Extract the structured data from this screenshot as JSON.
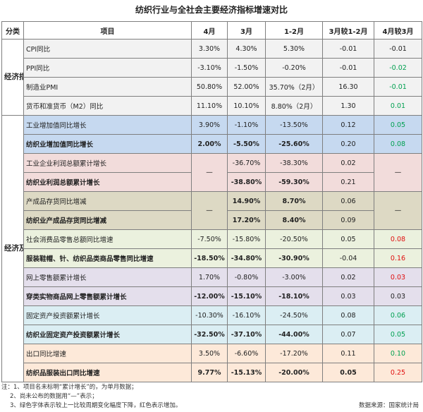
{
  "title": "纺织行业与全社会主要经济指标增速对比",
  "headers": [
    "分类",
    "项目",
    "4月",
    "3月",
    "1-2月",
    "3月较1-2月",
    "4月较3月"
  ],
  "categories": {
    "econ": "经济指标",
    "industry": "经济及纺织行业指标"
  },
  "rows": {
    "cpi": {
      "name": "CPI同比",
      "apr": "3.30%",
      "mar": "4.30%",
      "janfeb": "5.30%",
      "d1": "-0.01",
      "d2": "-0.01"
    },
    "ppi": {
      "name": "PPI同比",
      "apr": "-3.10%",
      "mar": "-1.50%",
      "janfeb": "-0.20%",
      "d1": "-0.01",
      "d2": "-0.02"
    },
    "pmi": {
      "name": "制造业PMI",
      "apr": "50.80%",
      "mar": "52.00%",
      "janfeb": "35.70%（2月）",
      "d1": "16.30",
      "d2": "-0.01"
    },
    "m2": {
      "name": "货币和准货币（M2）同比",
      "apr": "11.10%",
      "mar": "10.10%",
      "janfeb": "8.80%（2月）",
      "d1": "1.30",
      "d2": "0.01"
    },
    "ind_add": {
      "name": "工业增加值同比增长",
      "apr": "3.90%",
      "mar": "-1.10%",
      "janfeb": "-13.50%",
      "d1": "0.12",
      "d2": "0.05"
    },
    "tex_add": {
      "name": "纺织业增加值同比增长",
      "apr": "2.00%",
      "mar": "-5.50%",
      "janfeb": "-25.60%",
      "d1": "0.20",
      "d2": "0.08"
    },
    "ind_profit": {
      "name": "工业企业利润总额累计增长",
      "mar": "-36.70%",
      "janfeb": "-38.30%",
      "d1": "0.02"
    },
    "tex_profit": {
      "name": "纺织业利润总额累计增长",
      "mar": "-38.80%",
      "janfeb": "-59.30%",
      "d1": "0.21"
    },
    "inv": {
      "name": "产成品存货同比增减",
      "mar": "14.90%",
      "janfeb": "8.70%",
      "d1": "0.06"
    },
    "tex_inv": {
      "name": "纺织业产成品存货同比增减",
      "mar": "17.20%",
      "janfeb": "8.40%",
      "d1": "0.09"
    },
    "retail": {
      "name": "社会消费品零售总额同比增速",
      "apr": "-7.50%",
      "mar": "-15.80%",
      "janfeb": "-20.50%",
      "d1": "0.05",
      "d2": "0.08"
    },
    "apparel": {
      "name": "服装鞋帽、针、纺织品类商品零售同比增速",
      "apr": "-18.50%",
      "mar": "-34.80%",
      "janfeb": "-30.90%",
      "d1": "-0.04",
      "d2": "0.16"
    },
    "online": {
      "name": "网上零售额累计增长",
      "apr": "1.70%",
      "mar": "-0.80%",
      "janfeb": "-3.00%",
      "d1": "0.02",
      "d2": "0.03"
    },
    "online_wear": {
      "name": "穿类实物商品网上零售额累计增长",
      "apr": "-12.00%",
      "mar": "-15.10%",
      "janfeb": "-18.10%",
      "d1": "0.03",
      "d2": "0.03"
    },
    "fai": {
      "name": "固定资产投资额累计增长",
      "apr": "-10.30%",
      "mar": "-16.10%",
      "janfeb": "-24.50%",
      "d1": "0.08",
      "d2": "0.06"
    },
    "tex_fai": {
      "name": "纺织业固定资产投资额累计增长",
      "apr": "-32.50%",
      "mar": "-37.10%",
      "janfeb": "-44.00%",
      "d1": "0.07",
      "d2": "0.05"
    },
    "export": {
      "name": "出口同比增速",
      "apr": "3.50%",
      "mar": "-6.60%",
      "janfeb": "-17.20%",
      "d1": "0.11",
      "d2": "0.10"
    },
    "tex_export": {
      "name": "纺织品服装出口同比增速",
      "apr": "9.77%",
      "mar": "-15.13%",
      "janfeb": "-20.00%",
      "d1": "0.05",
      "d2": "0.25"
    }
  },
  "dash": "—",
  "notes": [
    "注：1、项目名未标明“累计增长”的，为单月数据；",
    "2、尚未公布的数据用“—”表示；",
    "3、绿色字体表示较上一比较周期变化幅度下降，红色表示增加。"
  ],
  "source": "数据来源：国家统计局",
  "colors": {
    "green_text": "#00a050",
    "red_text": "#e01010"
  }
}
